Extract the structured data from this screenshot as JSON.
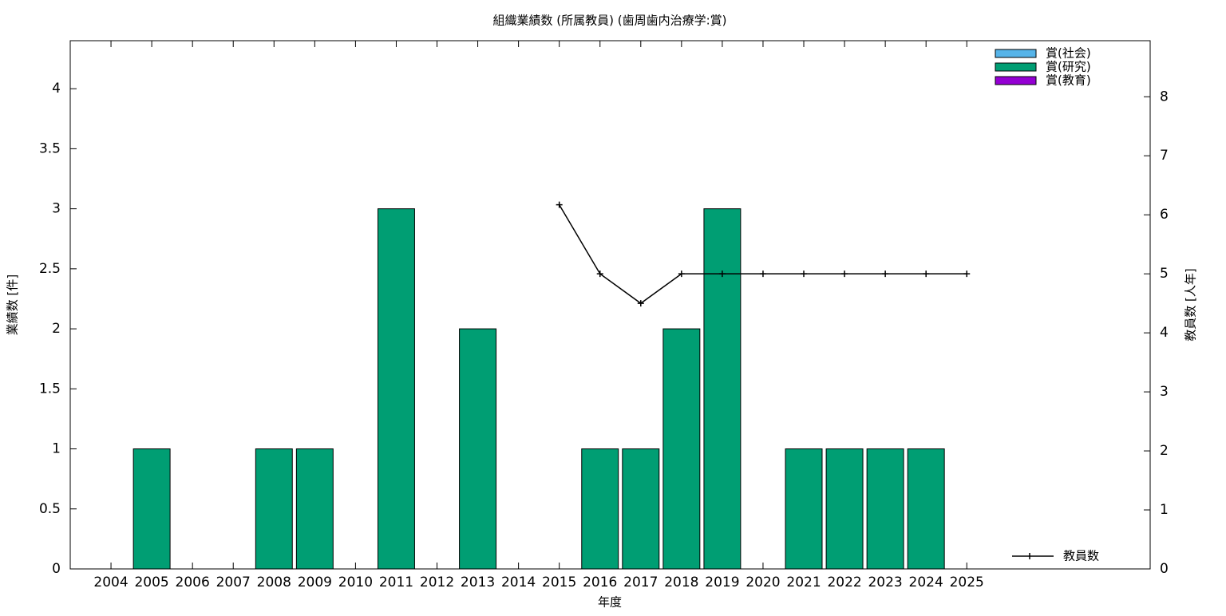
{
  "chart_data": {
    "type": "bar",
    "stacked": true,
    "title": "組織業績数 (所属教員) (歯周歯内治療学:賞)",
    "xlabel": "年度",
    "ylabel": "業績数 [件]",
    "y2label": "教員数 [人年]",
    "x": [
      2004,
      2005,
      2006,
      2007,
      2008,
      2009,
      2010,
      2011,
      2012,
      2013,
      2014,
      2015,
      2016,
      2017,
      2018,
      2019,
      2020,
      2021,
      2022,
      2023,
      2024,
      2025
    ],
    "xlim": [
      2003,
      2029.5
    ],
    "xticks": [
      2004,
      2005,
      2006,
      2007,
      2008,
      2009,
      2010,
      2011,
      2012,
      2013,
      2014,
      2015,
      2016,
      2017,
      2018,
      2019,
      2020,
      2021,
      2022,
      2023,
      2024,
      2025
    ],
    "ylim": [
      0,
      4.4
    ],
    "yticks": [
      0,
      0.5,
      1,
      1.5,
      2,
      2.5,
      3,
      3.5,
      4
    ],
    "y2lim": [
      0,
      8.95
    ],
    "y2ticks": [
      0,
      1,
      2,
      3,
      4,
      5,
      6,
      7,
      8
    ],
    "series": [
      {
        "name": "賞(社会)",
        "color": "#56b4e9",
        "values": [
          0,
          0,
          0,
          0,
          0,
          0,
          0,
          0,
          0,
          0,
          0,
          0,
          0,
          0,
          0,
          0,
          0,
          0,
          0,
          0,
          0,
          0
        ]
      },
      {
        "name": "賞(研究)",
        "color": "#009e73",
        "values": [
          0,
          1,
          0,
          0,
          1,
          1,
          0,
          3,
          0,
          2,
          0,
          0,
          1,
          1,
          2,
          3,
          0,
          1,
          1,
          1,
          1,
          0
        ]
      },
      {
        "name": "賞(教育)",
        "color": "#9400d3",
        "values": [
          0,
          0,
          0,
          0,
          0,
          0,
          0,
          0,
          0,
          0,
          0,
          0,
          0,
          0,
          0,
          0,
          0,
          0,
          0,
          0,
          0,
          0
        ]
      },
      {
        "name": "教員数",
        "type": "line",
        "axis": "y2",
        "color": "#000000",
        "values": [
          null,
          null,
          null,
          null,
          null,
          null,
          null,
          null,
          null,
          null,
          null,
          6.17,
          5,
          4.5,
          5,
          5,
          5,
          5,
          5,
          5,
          5,
          5
        ]
      }
    ]
  }
}
